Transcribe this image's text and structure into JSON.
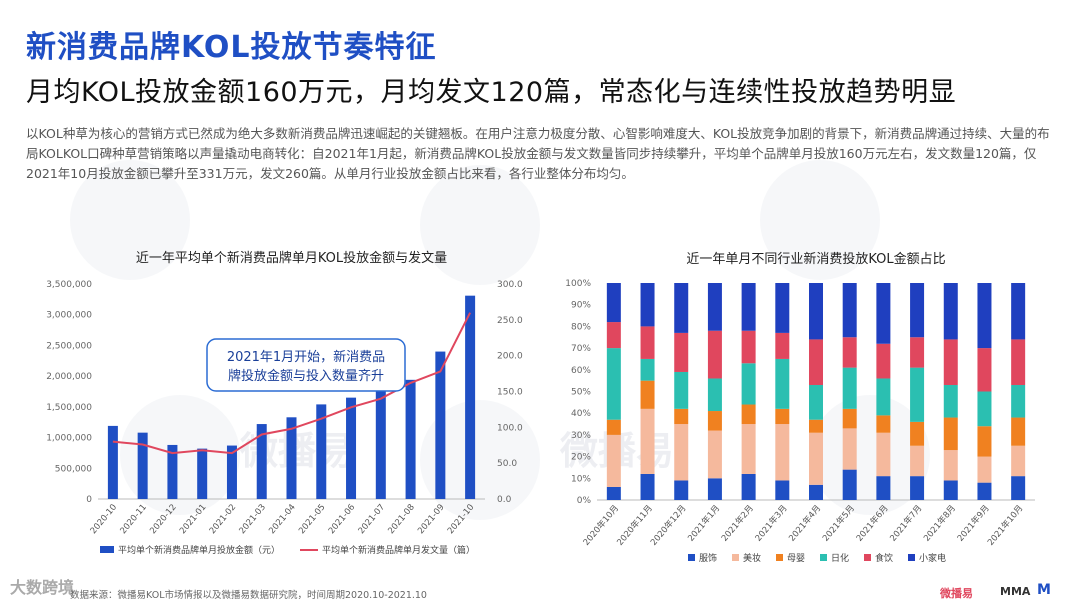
{
  "title": "新消费品牌KOL投放节奏特征",
  "subtitle": "月均KOL投放金额160万元，月均发文120篇，常态化与连续性投放趋势明显",
  "description": "以KOL种草为核心的营销方式已然成为绝大多数新消费品牌迅速崛起的关键翘板。在用户注意力极度分散、心智影响难度大、KOL投放竞争加剧的背景下，新消费品牌通过持续、大量的布局KOLKOL口碑种草营销策略以声量撬动电商转化：自2021年1月起，新消费品牌KOL投放金额与发文数量皆同步持续攀升，平均单个品牌单月投放160万元左右，发文数量120篇，仅2021年10月投放金额已攀升至331万元，发文260篇。从单月行业投放金额占比来看，各行业整体分布均匀。",
  "footer": {
    "source": "数据来源：微播易KOL市场情报以及微播易数据研究院，时间周期2020.10-2021.10",
    "left_logo": "大数跨境",
    "right_logo_1": "微播易",
    "right_logo_2": "MMA",
    "right_logo_3": "M"
  },
  "watermark": "微播易",
  "colors": {
    "bar": "#1f4fc4",
    "line": "#e0475e",
    "callout_border": "#2b6cd4"
  },
  "chart_data": [
    {
      "type": "bar",
      "title": "近一年平均单个新消费品牌单月KOL投放金额与发文量",
      "categories": [
        "2020-10",
        "2020-11",
        "2020-12",
        "2021-01",
        "2021-02",
        "2021-03",
        "2021-04",
        "2021-05",
        "2021-06",
        "2021-07",
        "2021-08",
        "2021-09",
        "2021-10"
      ],
      "y_ticks_left": [
        "0",
        "500,000",
        "1,000,000",
        "1,500,000",
        "2,000,000",
        "2,500,000",
        "3,000,000",
        "3,500,000"
      ],
      "y_ticks_right": [
        "0.0",
        "50.0",
        "100.0",
        "150.0",
        "200.0",
        "250.0",
        "300.0"
      ],
      "ylim_left": [
        0,
        3500000
      ],
      "ylim_right": [
        0,
        300
      ],
      "series": [
        {
          "name": "平均单个新消费品牌单月投放金额（元）",
          "kind": "bar",
          "axis": "left",
          "values": [
            1190000,
            1080000,
            880000,
            820000,
            870000,
            1220000,
            1330000,
            1540000,
            1650000,
            1760000,
            1940000,
            2400000,
            3310000
          ]
        },
        {
          "name": "平均单个新消费品牌单月发文量（篇）",
          "kind": "line",
          "axis": "right",
          "values": [
            80,
            76,
            64,
            68,
            64,
            90,
            98,
            112,
            128,
            140,
            162,
            178,
            260
          ]
        }
      ],
      "annotation": {
        "line1": "2021年1月开始，新消费品",
        "line2": "牌投放金额与投入数量齐升"
      }
    },
    {
      "type": "bar",
      "stacked": true,
      "title": "近一年单月不同行业新消费投放KOL金额占比",
      "categories": [
        "2020年10月",
        "2020年11月",
        "2020年12月",
        "2021年1月",
        "2021年2月",
        "2021年3月",
        "2021年4月",
        "2021年5月",
        "2021年6月",
        "2021年7月",
        "2021年8月",
        "2021年9月",
        "2021年10月"
      ],
      "y_ticks": [
        "0%",
        "10%",
        "20%",
        "30%",
        "40%",
        "50%",
        "60%",
        "70%",
        "80%",
        "90%",
        "100%"
      ],
      "ylim": [
        0,
        100
      ],
      "series": [
        {
          "name": "服饰",
          "color": "#1f4fc4",
          "values": [
            6,
            12,
            9,
            10,
            12,
            9,
            7,
            14,
            11,
            11,
            9,
            8,
            11
          ]
        },
        {
          "name": "美妆",
          "color": "#f5b99d",
          "values": [
            24,
            30,
            26,
            22,
            23,
            26,
            24,
            19,
            20,
            14,
            14,
            12,
            14
          ]
        },
        {
          "name": "母婴",
          "color": "#f08120",
          "values": [
            7,
            13,
            7,
            9,
            9,
            7,
            6,
            9,
            8,
            11,
            15,
            14,
            13
          ]
        },
        {
          "name": "日化",
          "color": "#2bbfb1",
          "values": [
            33,
            10,
            17,
            15,
            19,
            23,
            16,
            19,
            17,
            25,
            15,
            16,
            15
          ]
        },
        {
          "name": "食饮",
          "color": "#e0475e",
          "values": [
            12,
            15,
            18,
            22,
            15,
            12,
            21,
            14,
            16,
            14,
            21,
            20,
            21
          ]
        },
        {
          "name": "小家电",
          "color": "#1f3fbf",
          "values": [
            18,
            20,
            23,
            22,
            22,
            23,
            26,
            25,
            28,
            25,
            26,
            30,
            26
          ]
        }
      ]
    }
  ]
}
